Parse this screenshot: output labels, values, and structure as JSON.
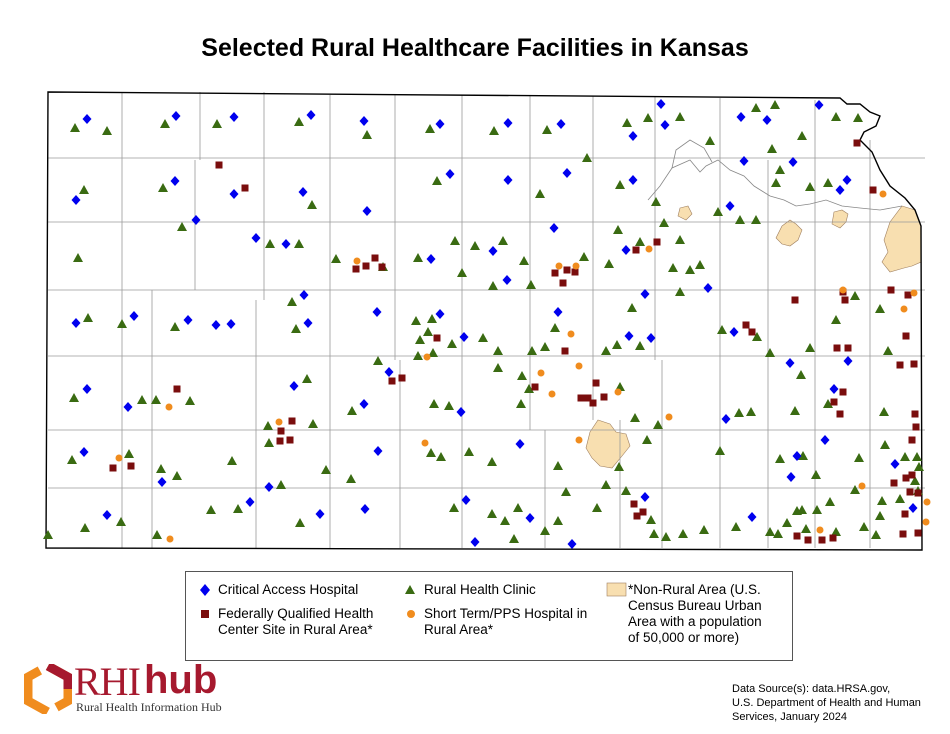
{
  "title": "Selected Rural Healthcare Facilities in Kansas",
  "legend": {
    "cah": "Critical Access Hospital",
    "rhc": "Rural Health Clinic",
    "nonrural": [
      "*Non-Rural Area (U.S.",
      "Census Bureau Urban",
      "Area with a population",
      "of 50,000 or more)"
    ],
    "fqhc": [
      "Federally Qualified Health",
      "Center Site in Rural Area*"
    ],
    "pps": [
      "Short Term/PPS Hospital in",
      "Rural Area*"
    ]
  },
  "logo": {
    "rhi": "RHI",
    "hub": "hub",
    "subtitle": "Rural Health Information Hub"
  },
  "source": [
    "Data Source(s): data.HRSA.gov,",
    "U.S. Department of Health and Human",
    "Services, January 2024"
  ],
  "colors": {
    "cah": "#0000ee",
    "rhc": "#3a6b12",
    "fqhc": "#7a0d0d",
    "pps": "#f08c1e",
    "nonrural": "#f8dfb0",
    "outline": "#000000",
    "county": "#9a9a9a",
    "river": "#888888"
  },
  "icons": {
    "cah": "diamond-icon",
    "rhc": "triangle-icon",
    "fqhc": "square-icon",
    "pps": "circle-icon"
  }
}
